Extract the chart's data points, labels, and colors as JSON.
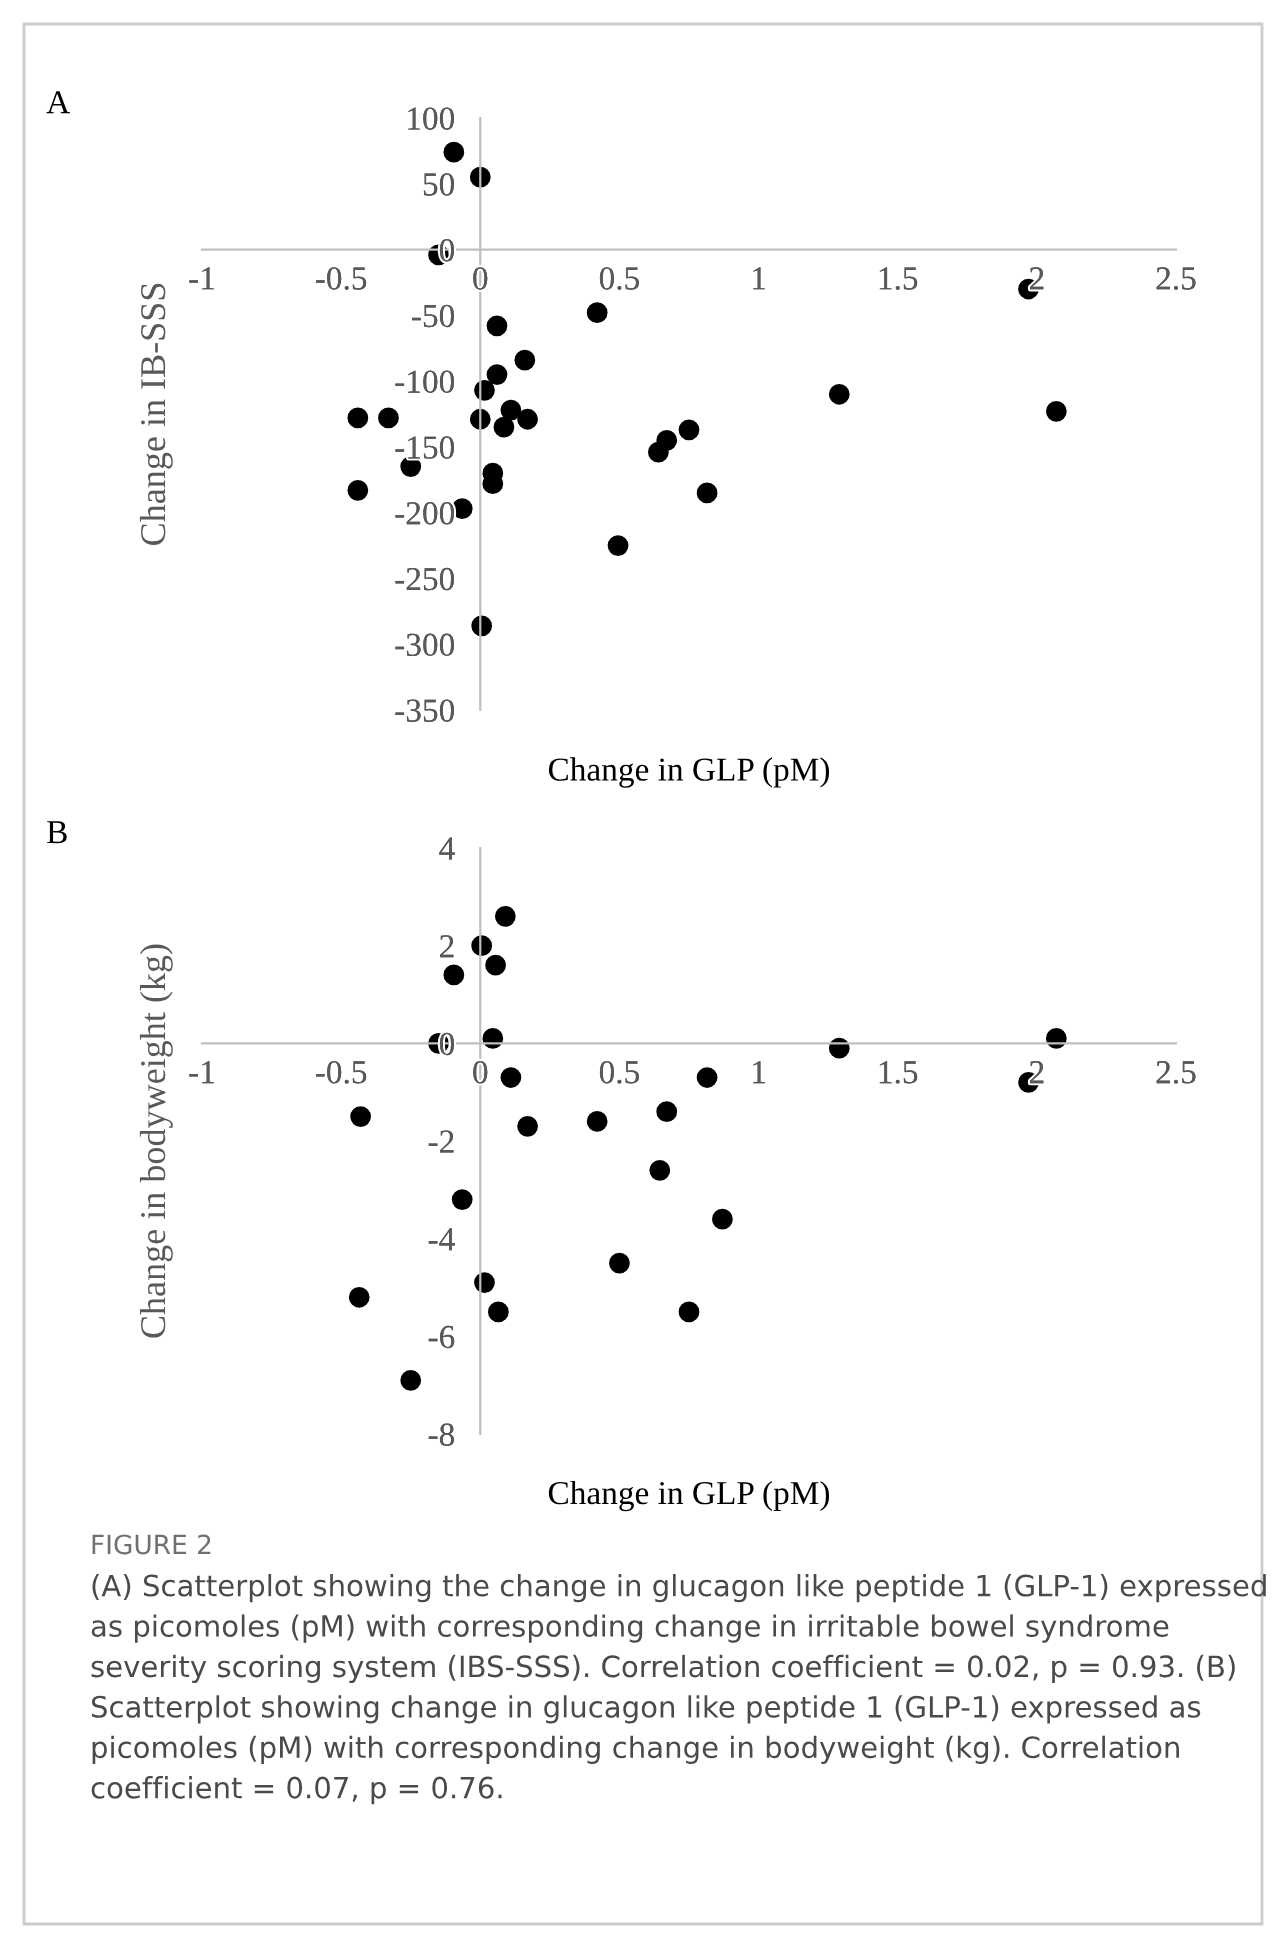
{
  "chart_data": [
    {
      "type": "scatter",
      "title": "A",
      "xlabel": "Change in GLP (pM)",
      "ylabel": "Change in IB-SSS",
      "marker": "circle",
      "grid": false,
      "legend": false,
      "xlim": [
        -1,
        2.5
      ],
      "xticks": [
        -1,
        -0.5,
        0,
        0.5,
        1,
        1.5,
        2,
        2.5
      ],
      "ylim": [
        -350,
        100
      ],
      "yticks": [
        -350,
        -300,
        -250,
        -200,
        -150,
        -100,
        -50,
        0,
        50,
        100
      ],
      "series": [
        {
          "color": "#000000",
          "x": [
            -0.095,
            0,
            -0.15,
            1.97,
            0.42,
            0.06,
            0.16,
            0.06,
            0.015,
            1.29,
            -0.44,
            -0.33,
            0,
            0.11,
            0.17,
            0.085,
            2.07,
            0.75,
            0.67,
            0.64,
            -0.25,
            0.045,
            0.045,
            -0.44,
            0.815,
            -0.065,
            0.495,
            0.005
          ],
          "values": [
            74,
            55,
            -4,
            -30,
            -48,
            -58,
            -84,
            -95,
            -107,
            -110,
            -128,
            -128,
            -129,
            -122,
            -129,
            -135,
            -123,
            -137,
            -145,
            -154,
            -165,
            -170,
            -178,
            -183,
            -185,
            -197,
            -225,
            -286
          ]
        }
      ]
    },
    {
      "type": "scatter",
      "title": "B",
      "xlabel": "Change in GLP (pM)",
      "ylabel": "Change in bodyweight (kg)",
      "marker": "circle",
      "grid": false,
      "legend": false,
      "xlim": [
        -1,
        2.5
      ],
      "xticks": [
        -1,
        -0.5,
        0,
        0.5,
        1,
        1.5,
        2,
        2.5
      ],
      "ylim": [
        -8,
        4
      ],
      "yticks": [
        -8,
        -6,
        -4,
        -2,
        0,
        2,
        4
      ],
      "series": [
        {
          "color": "#000000",
          "x": [
            0.09,
            0.005,
            0.055,
            -0.095,
            0.045,
            -0.15,
            1.29,
            2.07,
            0.11,
            0.815,
            1.97,
            -0.43,
            0.67,
            0.17,
            0.42,
            0.645,
            -0.065,
            0.87,
            0.5,
            0.015,
            -0.435,
            0.065,
            0.75,
            -0.25
          ],
          "values": [
            2.6,
            2.0,
            1.6,
            1.4,
            0.1,
            0.0,
            -0.1,
            0.1,
            -0.7,
            -0.7,
            -0.8,
            -1.5,
            -1.4,
            -1.7,
            -1.6,
            -2.6,
            -3.2,
            -3.6,
            -4.5,
            -4.9,
            -5.2,
            -5.5,
            -5.5,
            -6.9
          ]
        }
      ],
      "annotations": [
        "FIGURE 2",
        "(A) Scatterplot showing the change in glucagon like peptide 1 (GLP-1) expressed as picomoles (pM) with corresponding change in irritable bowel syndrome severity scoring system (IBS-SSS). Correlation coefficient = 0.02, p = 0.93. (B) Scatterplot showing change in glucagon like peptide 1 (GLP-1) expressed as picomoles (pM) with corresponding change in bodyweight (kg). Correlation coefficient = 0.07, p = 0.76."
      ]
    }
  ]
}
